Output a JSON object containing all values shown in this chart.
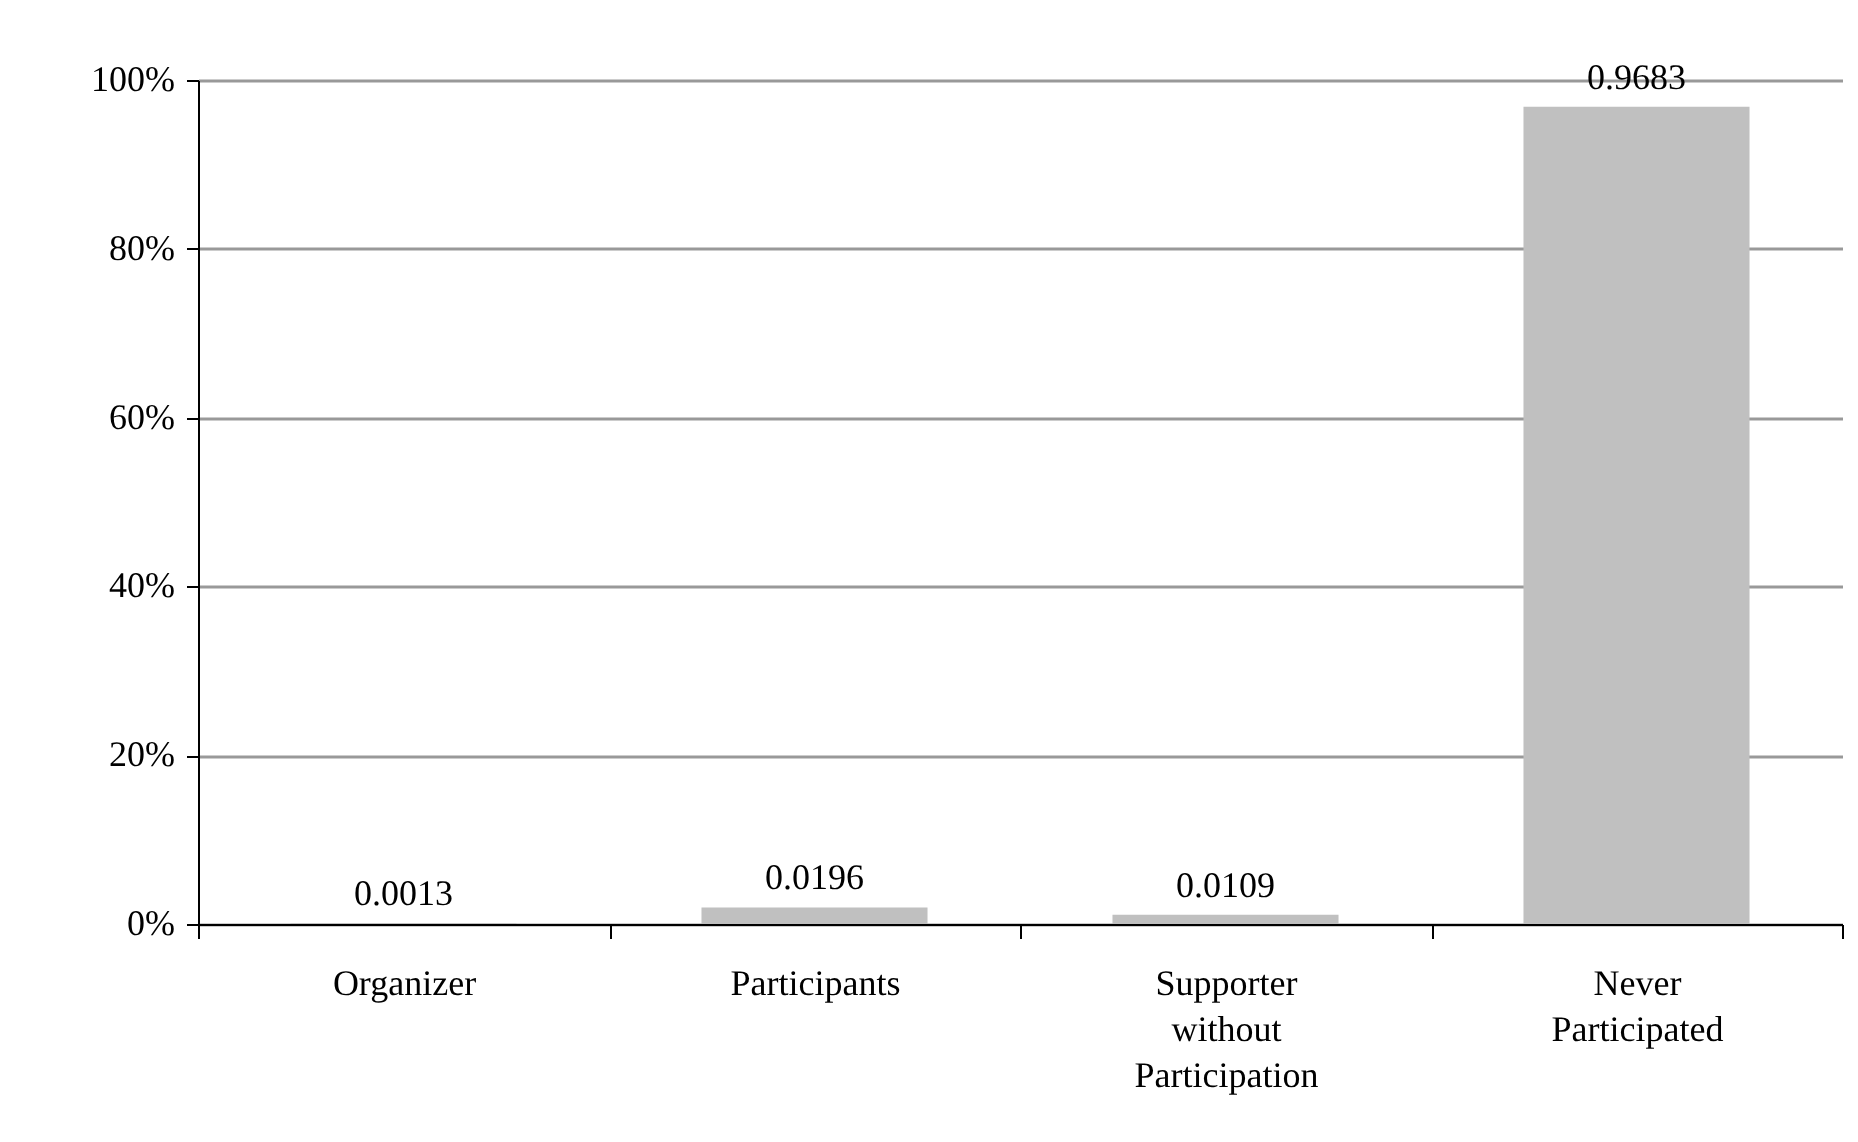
{
  "chart_data": {
    "type": "bar",
    "categories": [
      "Organizer",
      "Participants",
      "Supporter without Participation",
      "Never Participated"
    ],
    "values": [
      0.0013,
      0.0196,
      0.0109,
      0.9683
    ],
    "color": "#c0c0c0",
    "ylim": [
      0,
      1
    ],
    "yticks": [
      {
        "value": 0,
        "label": "0%"
      },
      {
        "value": 0.2,
        "label": "20%"
      },
      {
        "value": 0.4,
        "label": "40%"
      },
      {
        "value": 0.6,
        "label": "60%"
      },
      {
        "value": 0.8,
        "label": "80%"
      },
      {
        "value": 1,
        "label": "100%"
      }
    ],
    "grid": "y",
    "data_labels": true
  }
}
